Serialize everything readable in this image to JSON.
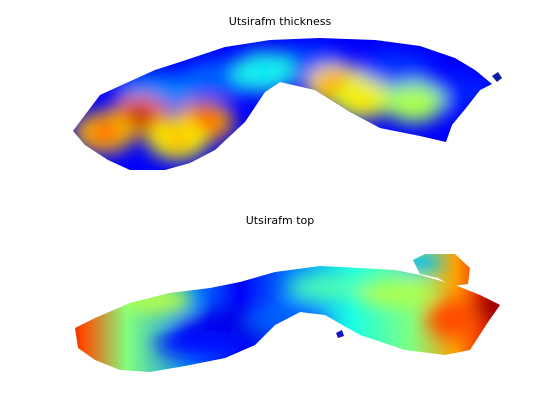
{
  "chart_data": [
    {
      "type": "heatmap",
      "title": "Utsirafm thickness",
      "colormap": "jet",
      "colorbar": false,
      "axes_visible": false,
      "hotspots": [
        {
          "rel_x": 0.16,
          "rel_y": 0.58,
          "level": 0.95
        },
        {
          "rel_x": 0.08,
          "rel_y": 0.7,
          "level": 0.8
        },
        {
          "rel_x": 0.31,
          "rel_y": 0.62,
          "level": 0.85
        },
        {
          "rel_x": 0.25,
          "rel_y": 0.75,
          "level": 0.7
        },
        {
          "rel_x": 0.62,
          "rel_y": 0.35,
          "level": 0.75
        },
        {
          "rel_x": 0.68,
          "rel_y": 0.45,
          "level": 0.65
        },
        {
          "rel_x": 0.8,
          "rel_y": 0.48,
          "level": 0.55
        },
        {
          "rel_x": 0.45,
          "rel_y": 0.25,
          "level": 0.35
        }
      ],
      "base_level": 0.12
    },
    {
      "type": "heatmap",
      "title": "Utsirafm top",
      "colormap": "jet",
      "colorbar": false,
      "axes_visible": false,
      "gradient_stops": [
        {
          "t": 0.0,
          "level": 0.95
        },
        {
          "t": 0.05,
          "level": 0.8
        },
        {
          "t": 0.15,
          "level": 0.5
        },
        {
          "t": 0.3,
          "level": 0.25
        },
        {
          "t": 0.4,
          "level": 0.12
        },
        {
          "t": 0.52,
          "level": 0.25
        },
        {
          "t": 0.65,
          "level": 0.4
        },
        {
          "t": 0.78,
          "level": 0.5
        },
        {
          "t": 0.88,
          "level": 0.72
        },
        {
          "t": 0.96,
          "level": 0.9
        },
        {
          "t": 1.0,
          "level": 0.98
        }
      ]
    }
  ]
}
